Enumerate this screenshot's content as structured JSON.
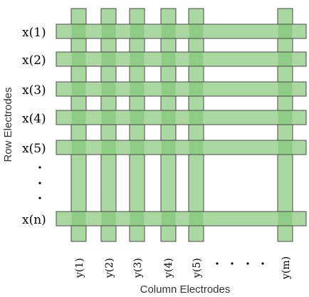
{
  "diagram": {
    "row_electrodes": {
      "axis_title": "Row Electrodes",
      "labels": [
        "x(1)",
        "x(2)",
        "x(3)",
        "x(4)",
        "x(5)",
        "x(n)"
      ]
    },
    "column_electrodes": {
      "axis_title": "Column Electrodes",
      "labels": [
        "y(1)",
        "y(2)",
        "y(3)",
        "y(4)",
        "y(5)",
        "y(m)"
      ]
    },
    "colors": {
      "electrode_fill": "#a9d8a0",
      "electrode_stroke": "#4a4a4a",
      "crossing_fill": "#8ecb84"
    }
  }
}
